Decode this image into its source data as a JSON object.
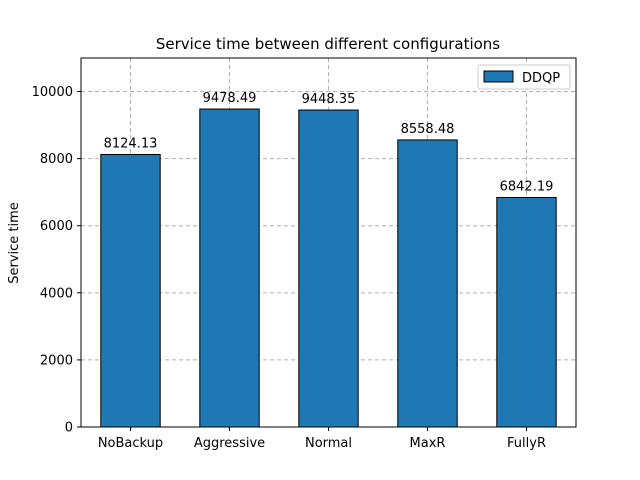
{
  "chart_data": {
    "type": "bar",
    "title": "Service time between different configurations",
    "xlabel": "",
    "ylabel": "Service time",
    "categories": [
      "NoBackup",
      "Aggressive",
      "Normal",
      "MaxR",
      "FullyR"
    ],
    "series": [
      {
        "name": "DDQP",
        "values": [
          8124.13,
          9478.49,
          9448.35,
          8558.48,
          6842.19
        ],
        "labels": [
          "8124.13",
          "9478.49",
          "9448.35",
          "8558.48",
          "6842.19"
        ],
        "color": "#1f77b4"
      }
    ],
    "ylim": [
      0,
      11000
    ],
    "yticks": [
      0,
      2000,
      4000,
      6000,
      8000,
      10000
    ],
    "ytick_labels": [
      "0",
      "2000",
      "4000",
      "6000",
      "8000",
      "10000"
    ],
    "grid": true,
    "legend": "top-right"
  }
}
